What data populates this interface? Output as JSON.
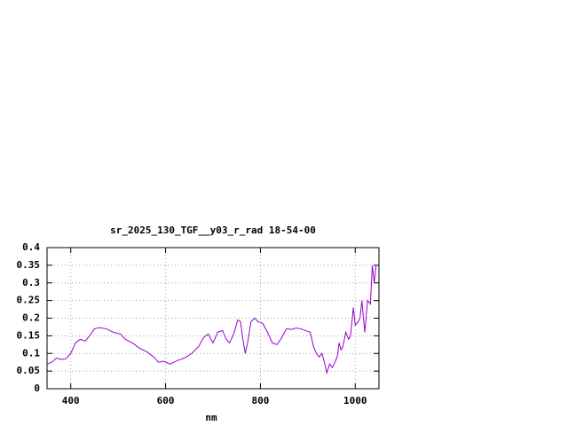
{
  "chart_data": {
    "type": "line",
    "title": "sr_2025_130_TGF__y03_r_rad 18-54-00",
    "x_label": "nm",
    "x": [
      350,
      360,
      370,
      380,
      390,
      400,
      410,
      420,
      430,
      440,
      450,
      460,
      475,
      490,
      505,
      515,
      530,
      545,
      560,
      575,
      585,
      595,
      610,
      625,
      640,
      655,
      670,
      680,
      690,
      700,
      710,
      720,
      728,
      735,
      745,
      752,
      758,
      763,
      768,
      773,
      780,
      788,
      795,
      805,
      815,
      825,
      835,
      845,
      855,
      865,
      875,
      885,
      895,
      905,
      912,
      918,
      924,
      930,
      934,
      940,
      946,
      952,
      957,
      962,
      966,
      970,
      974,
      980,
      986,
      990,
      996,
      1000,
      1006,
      1010,
      1014,
      1020,
      1026,
      1032,
      1036,
      1040,
      1044,
      1047
    ],
    "series": [
      {
        "name": "sr_2025_130_TGF__y03_r_rad",
        "color": "#9400d3",
        "values": [
          0.07,
          0.075,
          0.087,
          0.083,
          0.085,
          0.1,
          0.13,
          0.14,
          0.135,
          0.15,
          0.17,
          0.173,
          0.17,
          0.16,
          0.155,
          0.14,
          0.13,
          0.115,
          0.105,
          0.09,
          0.075,
          0.078,
          0.07,
          0.08,
          0.087,
          0.1,
          0.12,
          0.145,
          0.155,
          0.13,
          0.16,
          0.165,
          0.14,
          0.13,
          0.16,
          0.195,
          0.19,
          0.14,
          0.1,
          0.13,
          0.19,
          0.2,
          0.19,
          0.185,
          0.16,
          0.13,
          0.125,
          0.145,
          0.17,
          0.168,
          0.172,
          0.17,
          0.165,
          0.16,
          0.12,
          0.1,
          0.09,
          0.1,
          0.08,
          0.045,
          0.07,
          0.06,
          0.075,
          0.09,
          0.13,
          0.11,
          0.12,
          0.16,
          0.14,
          0.15,
          0.23,
          0.18,
          0.19,
          0.2,
          0.25,
          0.16,
          0.25,
          0.24,
          0.35,
          0.3,
          0.35,
          0.35
        ]
      }
    ],
    "xlim": [
      350,
      1050
    ],
    "ylim": [
      0,
      0.4
    ],
    "xticks": [
      400,
      600,
      800,
      1000
    ],
    "yticks": [
      0,
      0.05,
      0.1,
      0.15,
      0.2,
      0.25,
      0.3,
      0.35,
      0.4
    ],
    "grid": true
  }
}
